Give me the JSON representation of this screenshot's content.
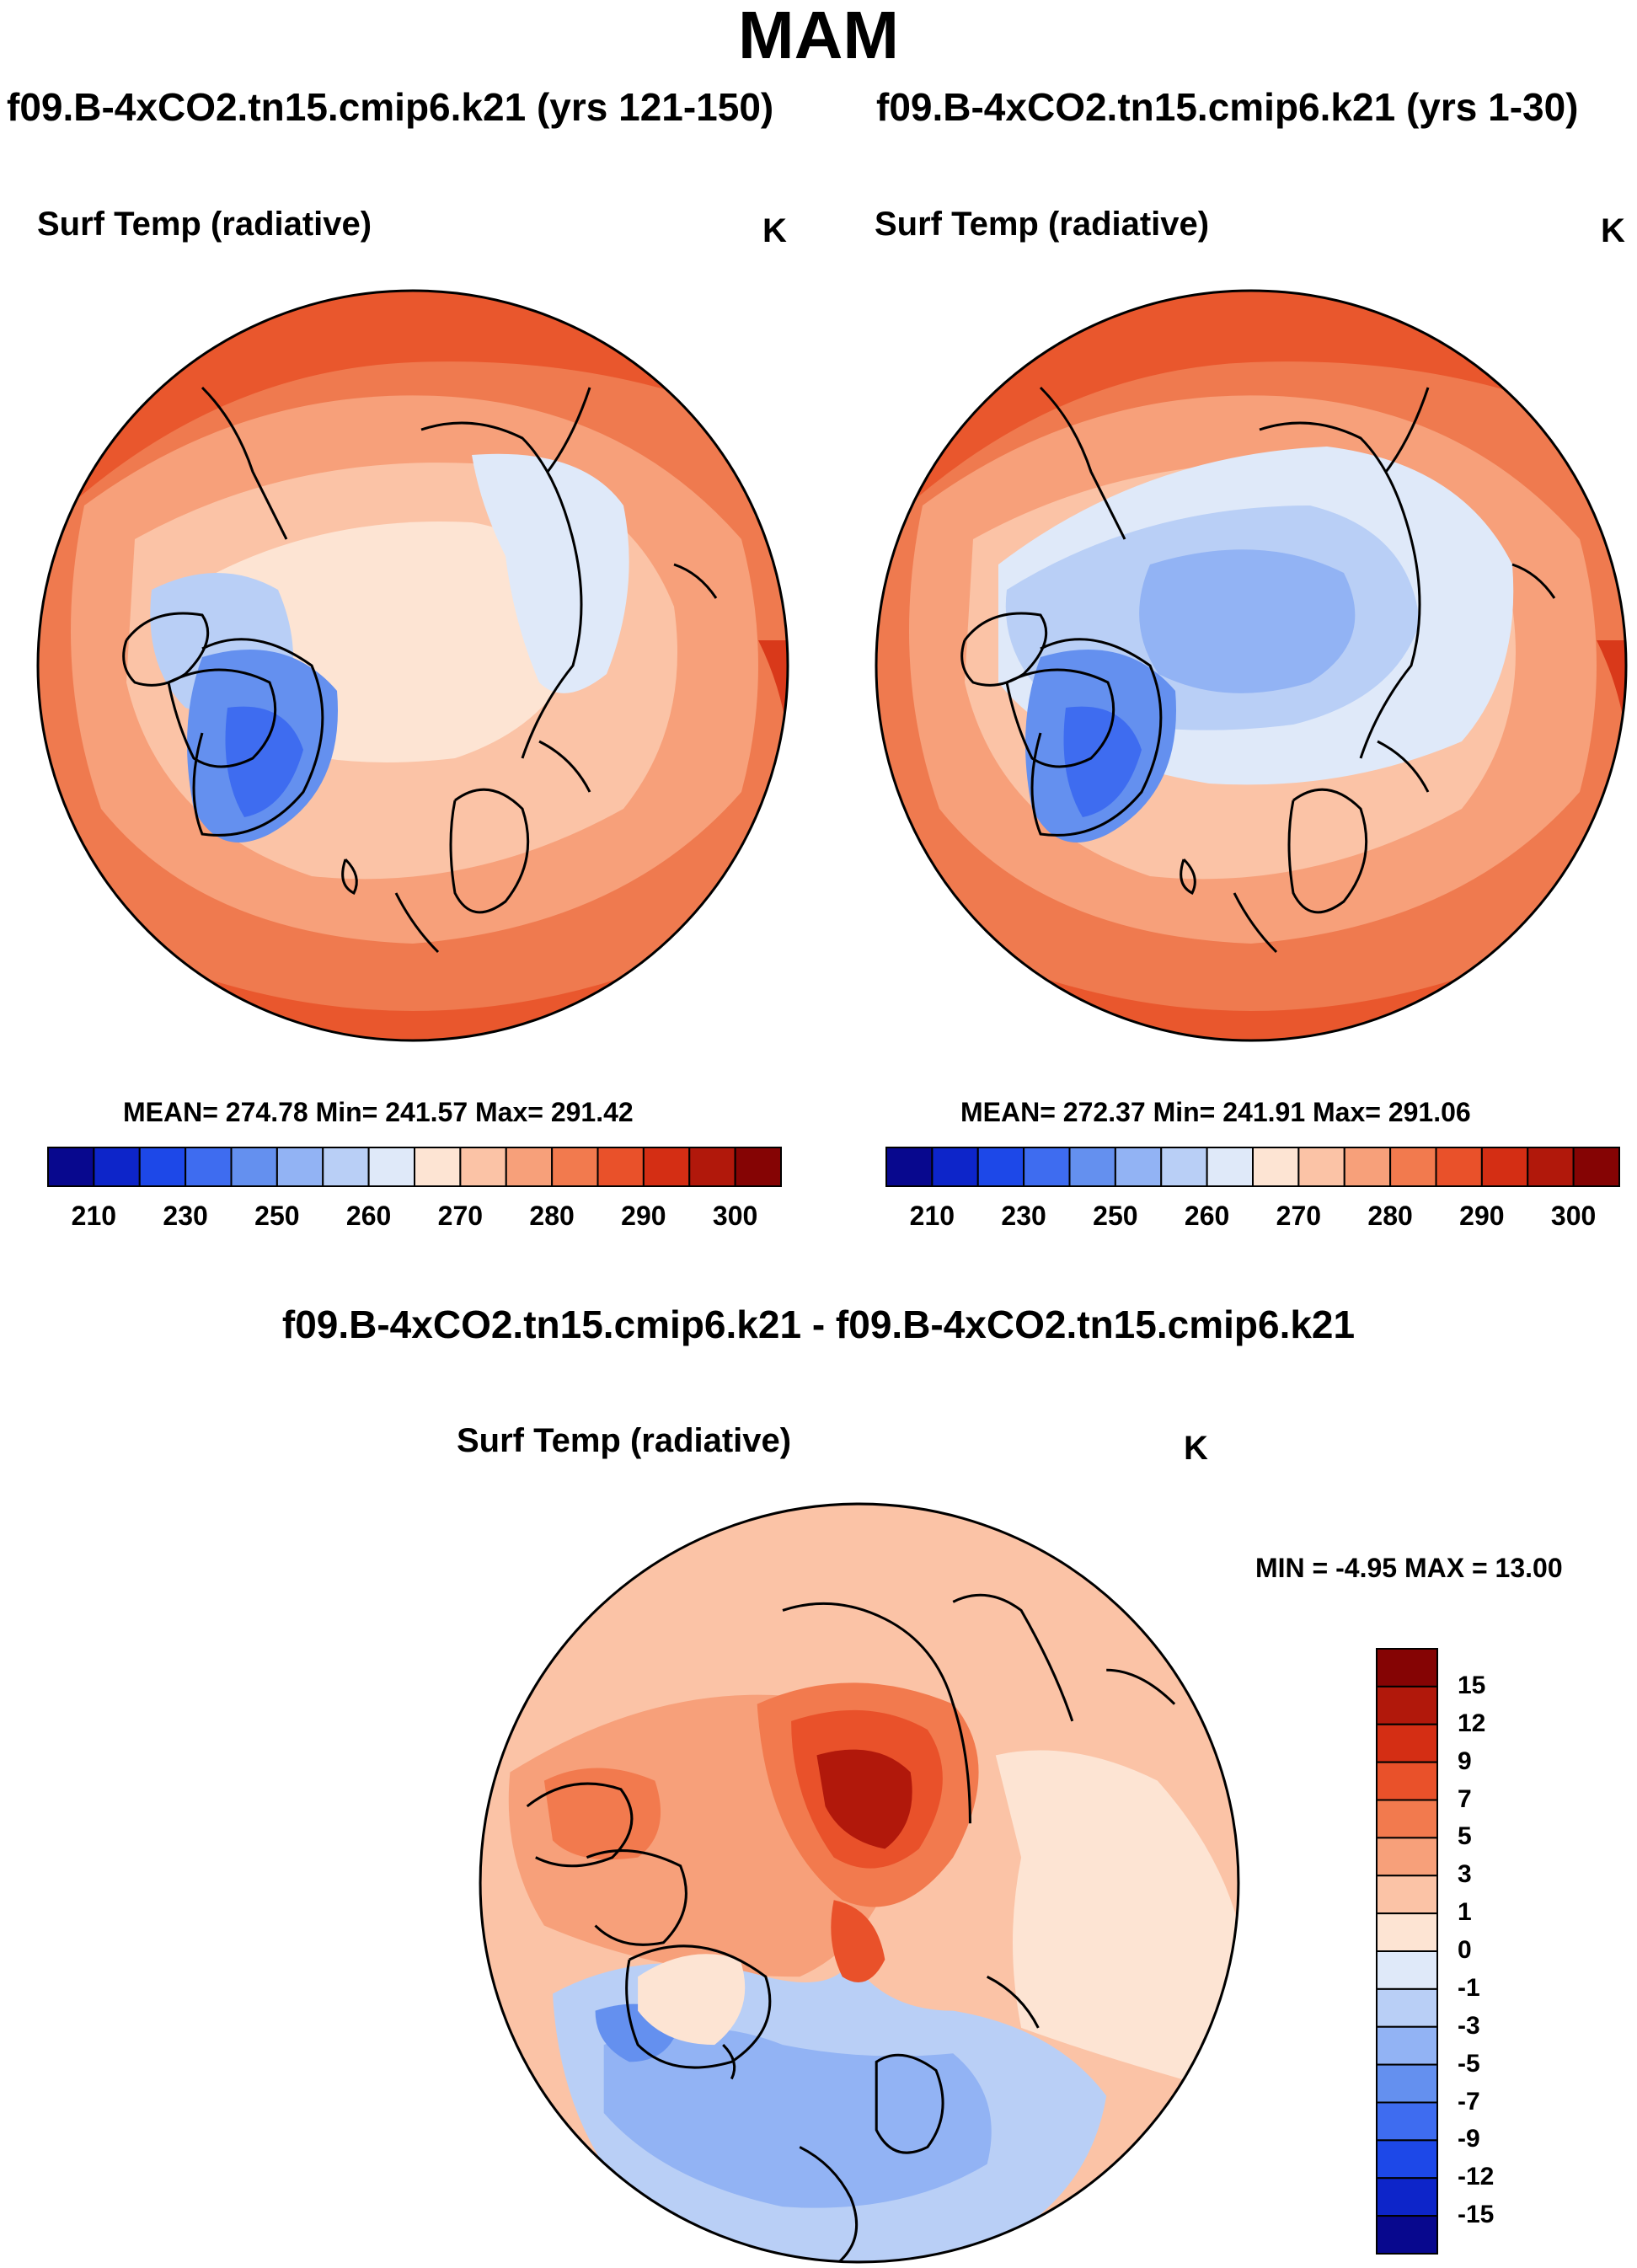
{
  "title": "MAM",
  "panels": [
    {
      "case": "f09.B-4xCO2.tn15.cmip6.k21 (yrs 121-150)",
      "variable": "Surf Temp (radiative)",
      "units": "K",
      "stats": "MEAN= 274.78  Min= 241.57  Max= 291.42",
      "colorbar": {
        "colors": [
          "#08088e",
          "#0d25c9",
          "#1d48e8",
          "#3e6cf0",
          "#6490ef",
          "#92b3f4",
          "#b9cff6",
          "#dfe9f9",
          "#fde4d3",
          "#fbc3a6",
          "#f7a07a",
          "#f27a4e",
          "#e9512a",
          "#d42e14",
          "#b1180b",
          "#850404"
        ],
        "labels": [
          "210",
          "230",
          "250",
          "260",
          "270",
          "280",
          "290",
          "300"
        ]
      }
    },
    {
      "case": "f09.B-4xCO2.tn15.cmip6.k21 (yrs 1-30)",
      "variable": "Surf Temp (radiative)",
      "units": "K",
      "stats": "MEAN= 272.37  Min= 241.91  Max= 291.06",
      "colorbar": {
        "colors": [
          "#08088e",
          "#0d25c9",
          "#1d48e8",
          "#3e6cf0",
          "#6490ef",
          "#92b3f4",
          "#b9cff6",
          "#dfe9f9",
          "#fde4d3",
          "#fbc3a6",
          "#f7a07a",
          "#f27a4e",
          "#e9512a",
          "#d42e14",
          "#b1180b",
          "#850404"
        ],
        "labels": [
          "210",
          "230",
          "250",
          "260",
          "270",
          "280",
          "290",
          "300"
        ]
      }
    }
  ],
  "difference": {
    "case": "f09.B-4xCO2.tn15.cmip6.k21 - f09.B-4xCO2.tn15.cmip6.k21",
    "variable": "Surf Temp (radiative)",
    "units": "K",
    "stats": "MIN =  -4.95 MAX =  13.00",
    "colorbar": {
      "colors": [
        "#850404",
        "#b1180b",
        "#d42e14",
        "#e9512a",
        "#f27a4e",
        "#f7a07a",
        "#fbc3a6",
        "#fde4d3",
        "#dfe9f9",
        "#b9cff6",
        "#92b3f4",
        "#6490ef",
        "#3e6cf0",
        "#1d48e8",
        "#0d25c9",
        "#08088e"
      ],
      "labels": [
        "15",
        "12",
        "9",
        "7",
        "5",
        "3",
        "1",
        "0",
        "-1",
        "-3",
        "-5",
        "-7",
        "-9",
        "-12",
        "-15"
      ]
    }
  }
}
